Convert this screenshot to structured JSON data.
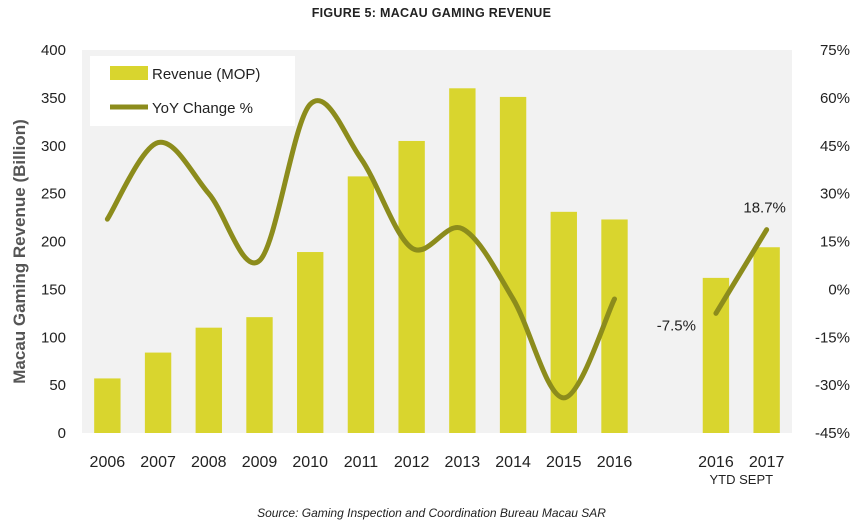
{
  "figure": {
    "title": "FIGURE 5: MACAU GAMING REVENUE",
    "source": "Source: Gaming Inspection and Coordination Bureau Macau SAR"
  },
  "chart_data": {
    "type": "bar",
    "categories": [
      "2006",
      "2007",
      "2008",
      "2009",
      "2010",
      "2011",
      "2012",
      "2013",
      "2014",
      "2015",
      "2016",
      "",
      "2016",
      "2017"
    ],
    "category_sublabel": "YTD SEPT",
    "ylabel": "Macau Gaming Revenue (Billion)",
    "ylim": [
      0,
      400
    ],
    "yticks": [
      0,
      50,
      100,
      150,
      200,
      250,
      300,
      350,
      400
    ],
    "y2lim": [
      -45,
      75
    ],
    "y2ticks": [
      "-45%",
      "-30%",
      "-15%",
      "0%",
      "15%",
      "30%",
      "45%",
      "60%",
      "75%"
    ],
    "grid": false,
    "background": "#f2f2f2",
    "legend_position": "top-left",
    "series": [
      {
        "name": "Revenue (MOP)",
        "kind": "bar",
        "axis": "left",
        "color": "#d9d52e",
        "values": [
          57,
          84,
          110,
          121,
          189,
          268,
          305,
          360,
          351,
          231,
          223,
          null,
          162,
          194
        ]
      },
      {
        "name": "YoY Change %",
        "kind": "line",
        "axis": "right",
        "color": "#8c8c1c",
        "segments": [
          {
            "x": [
              0,
              1,
              2,
              3,
              4,
              5,
              6,
              7,
              8,
              9,
              10
            ],
            "values": [
              22,
              46,
              30,
              9,
              58,
              41,
              13,
              19,
              -3,
              -34,
              -3
            ]
          },
          {
            "x": [
              12,
              13
            ],
            "values": [
              -7.5,
              18.7
            ]
          }
        ]
      }
    ],
    "annotations": [
      {
        "text": "-7.5%",
        "index": 12
      },
      {
        "text": "18.7%",
        "index": 13
      }
    ]
  }
}
